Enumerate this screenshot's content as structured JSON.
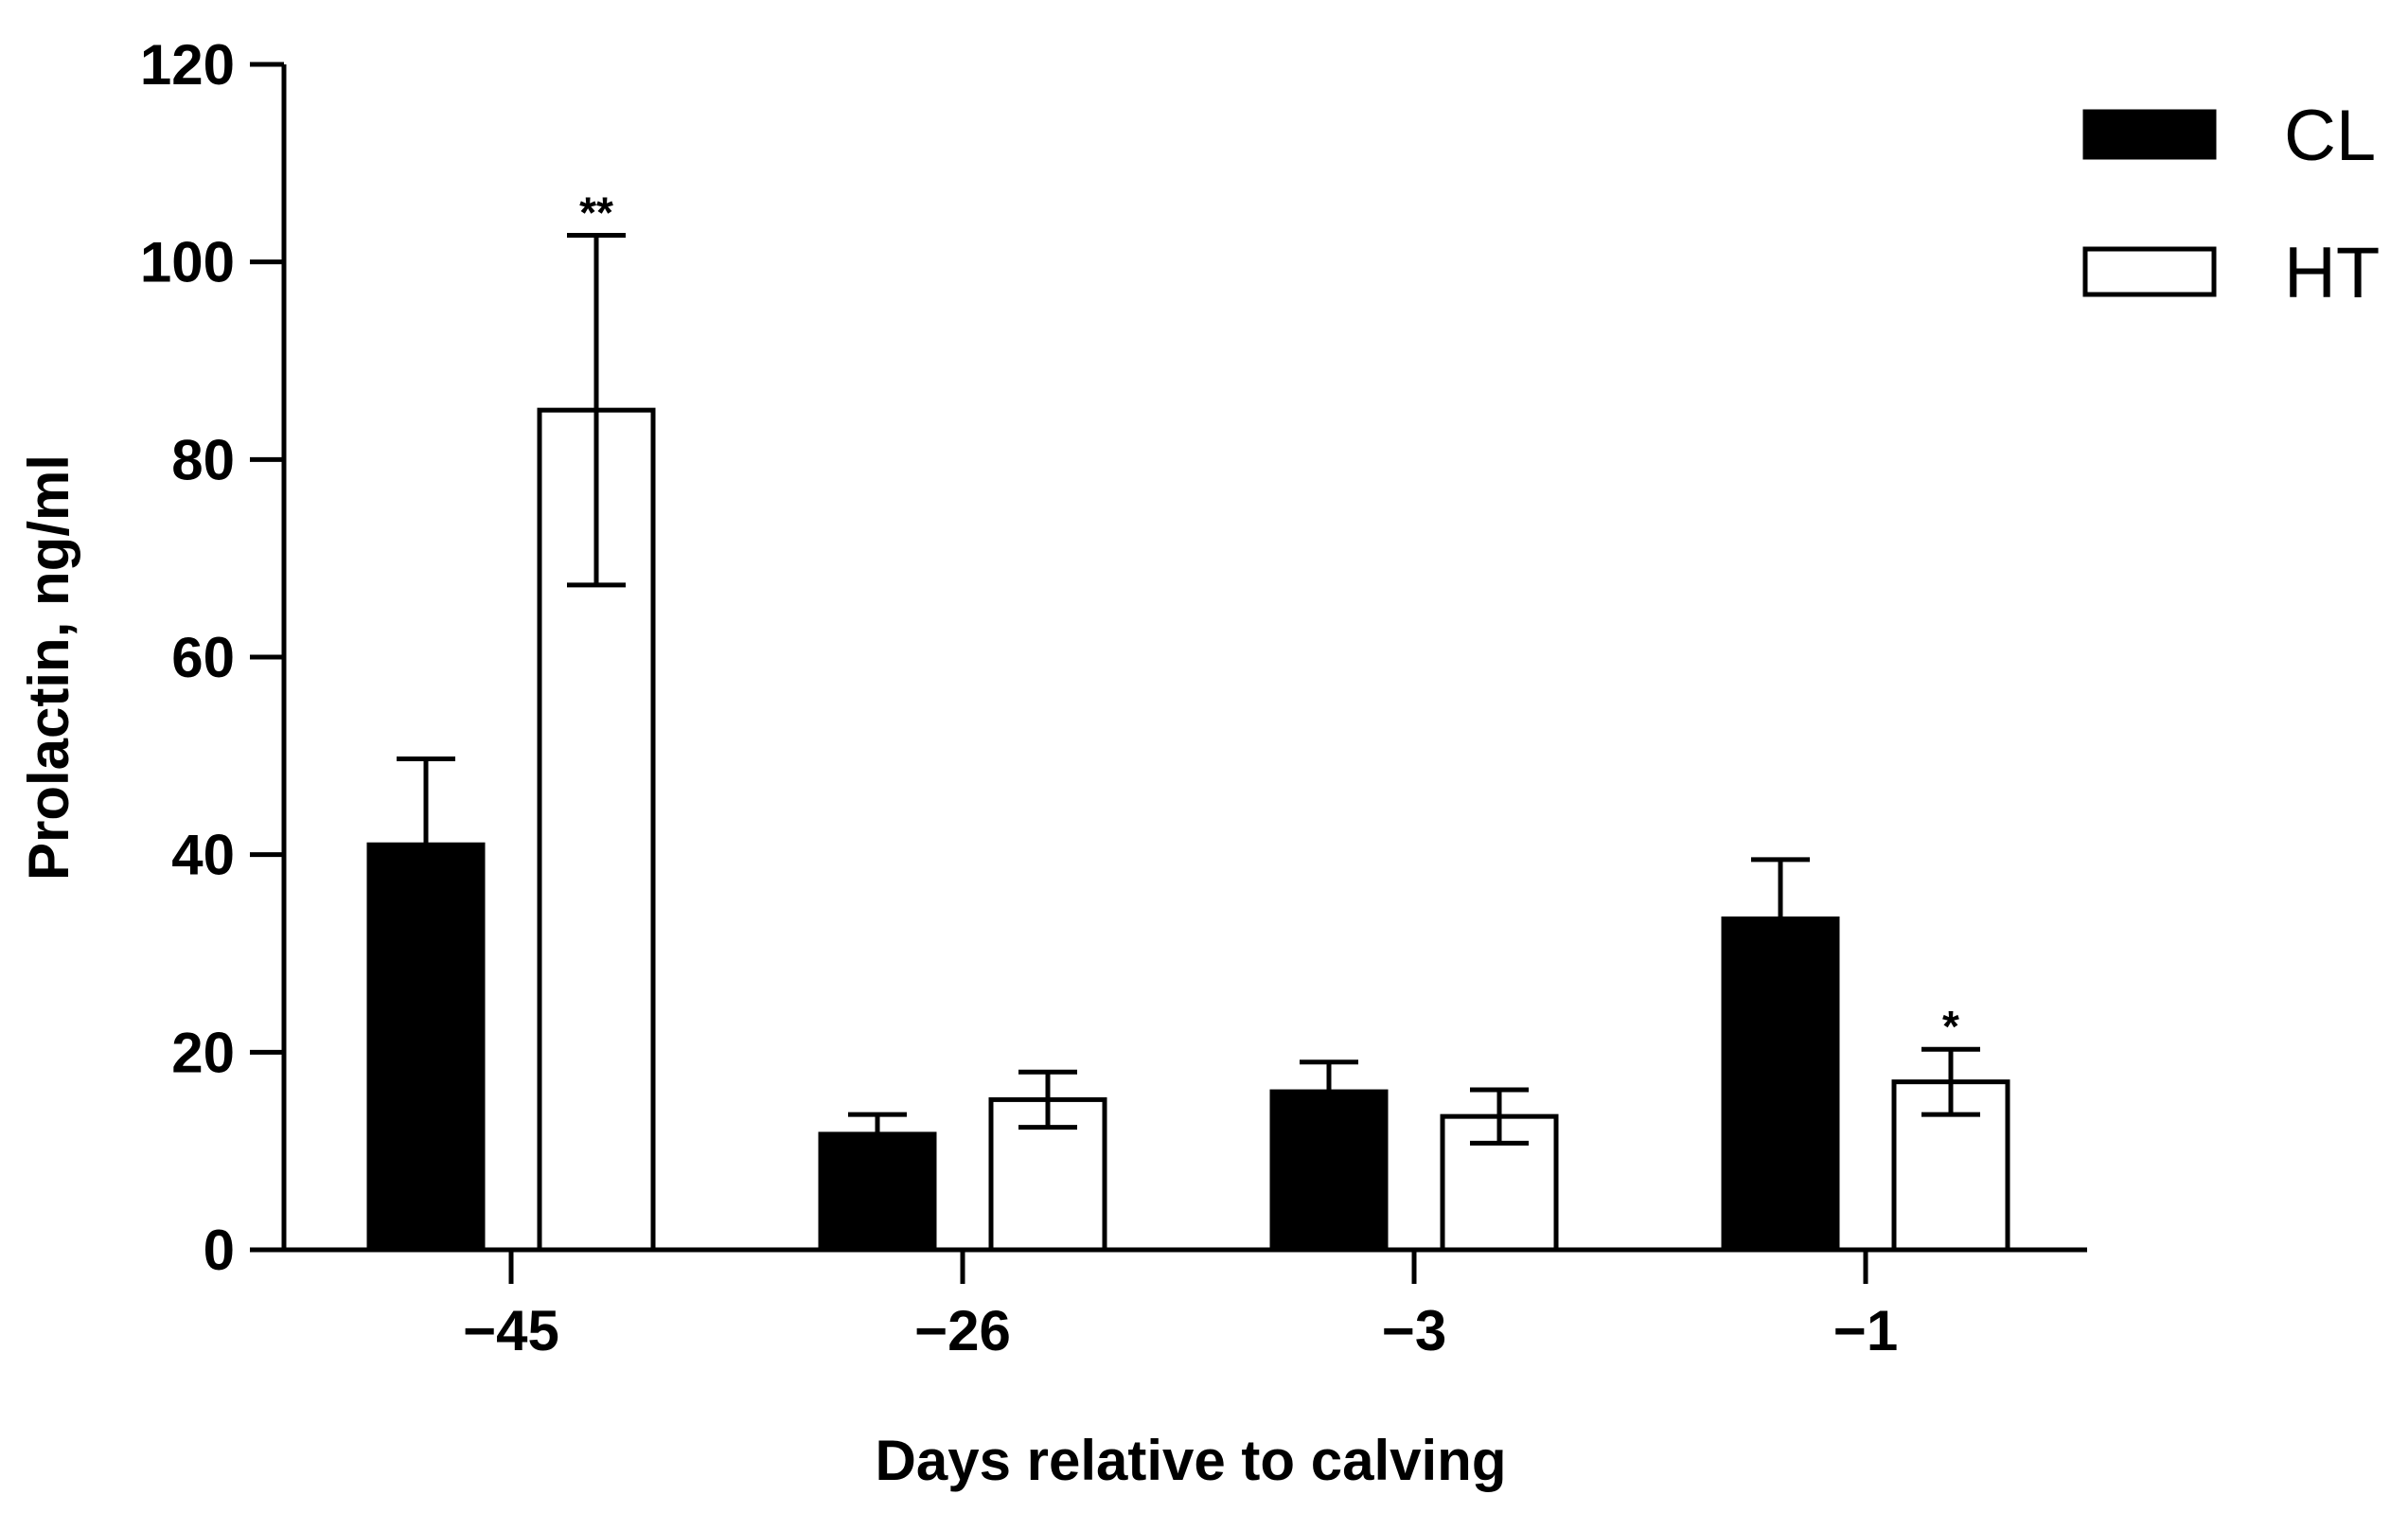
{
  "chart_data": {
    "type": "bar",
    "title": "",
    "xlabel": "Days relative to calving",
    "ylabel": "Prolactin, ng/ml",
    "categories": [
      "−45",
      "−26",
      "−3",
      "−1"
    ],
    "ylim": [
      0,
      120
    ],
    "yticks": [
      0,
      20,
      40,
      60,
      80,
      100,
      120
    ],
    "grid": false,
    "legend_position": "top-right",
    "error_bars": "one-sided",
    "series": [
      {
        "name": "CL",
        "fill": "#000000",
        "values": [
          41,
          11.7,
          16,
          33.5
        ],
        "errors": [
          8.7,
          2,
          3,
          6
        ],
        "annotations": [
          "",
          "",
          "",
          ""
        ]
      },
      {
        "name": "HT",
        "fill": "#ffffff",
        "values": [
          85,
          15.2,
          13.5,
          17
        ],
        "errors": [
          17.7,
          2.8,
          2.7,
          3.3
        ],
        "annotations": [
          "**",
          "",
          "",
          "*"
        ]
      }
    ]
  }
}
